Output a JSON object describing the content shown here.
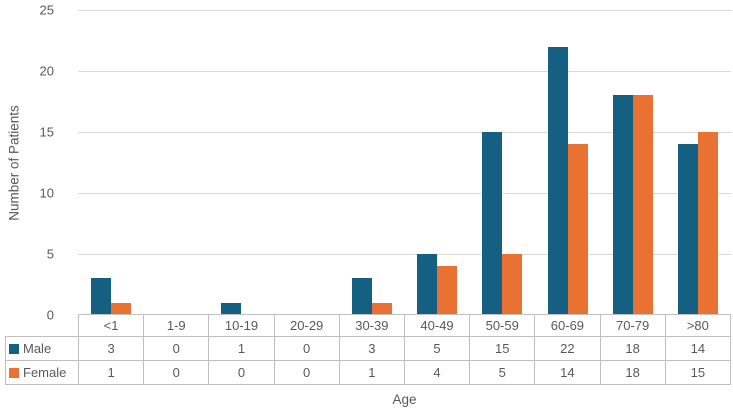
{
  "chart_data": {
    "type": "bar",
    "title": "",
    "xlabel": "Age",
    "ylabel": "Number of Patients",
    "categories": [
      "<1",
      "1-9",
      "10-19",
      "20-29",
      "30-39",
      "40-49",
      "50-59",
      "60-69",
      "70-79",
      ">80"
    ],
    "series": [
      {
        "name": "Male",
        "color": "#156082",
        "values": [
          3,
          0,
          1,
          0,
          3,
          5,
          15,
          22,
          18,
          14
        ]
      },
      {
        "name": "Female",
        "color": "#E97132",
        "values": [
          1,
          0,
          0,
          0,
          1,
          4,
          5,
          14,
          18,
          15
        ]
      }
    ],
    "ylim": [
      0,
      25
    ],
    "yticks": [
      0,
      5,
      10,
      15,
      20,
      25
    ],
    "grid": "horizontal",
    "legend_position": "data-table-left",
    "data_table_shown": true
  },
  "ui_colors": {
    "gridline": "#d9d9d9",
    "table_border": "#bfbfbf",
    "text": "#595959",
    "background": "#ffffff"
  }
}
